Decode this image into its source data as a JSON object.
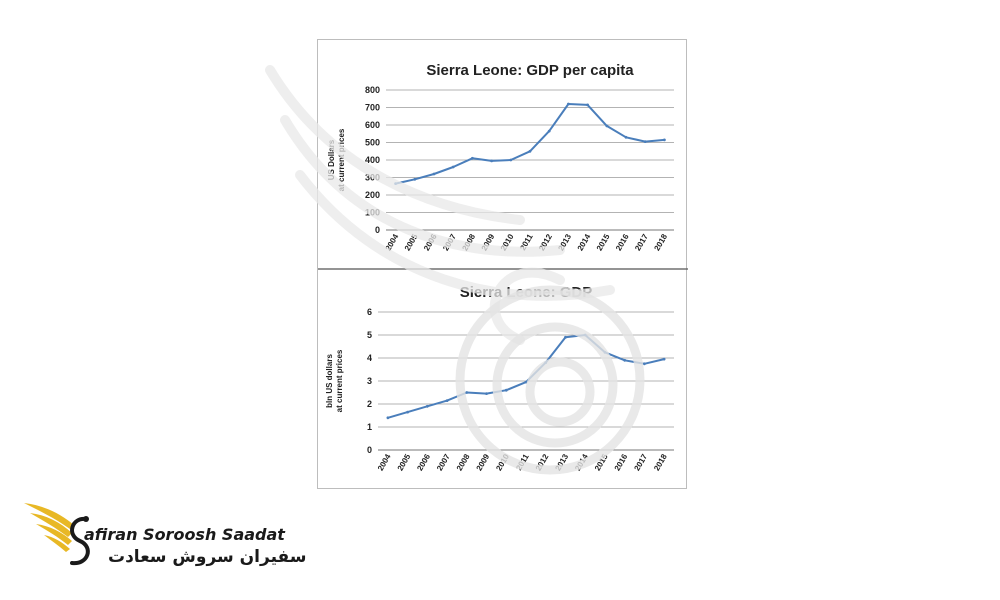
{
  "chart_data": [
    {
      "type": "line",
      "title": "Sierra Leone: GDP per capita",
      "ylabel": [
        "US Dollars",
        "at current prices"
      ],
      "xlabel": "",
      "categories": [
        "2004",
        "2005",
        "2006",
        "2007",
        "2008",
        "2009",
        "2010",
        "2011",
        "2012",
        "2013",
        "2014",
        "2015",
        "2016",
        "2017",
        "2018"
      ],
      "series": [
        {
          "values": [
            265,
            290,
            320,
            360,
            410,
            395,
            400,
            450,
            565,
            720,
            715,
            595,
            530,
            505,
            515
          ]
        }
      ],
      "ylim": [
        0,
        800
      ],
      "yticks": [
        0,
        100,
        200,
        300,
        400,
        500,
        600,
        700,
        800
      ],
      "grid": true,
      "legend": "none"
    },
    {
      "type": "line",
      "title": "Sierra Leone: GDP",
      "ylabel": [
        "bln US dollars",
        "at current prices"
      ],
      "xlabel": "",
      "categories": [
        "2004",
        "2005",
        "2006",
        "2007",
        "2008",
        "2009",
        "2010",
        "2011",
        "2012",
        "2013",
        "2014",
        "2015",
        "2016",
        "2017",
        "2018"
      ],
      "series": [
        {
          "values": [
            1.4,
            1.65,
            1.9,
            2.15,
            2.5,
            2.45,
            2.6,
            2.95,
            3.8,
            4.9,
            5.0,
            4.25,
            3.9,
            3.75,
            3.95
          ]
        }
      ],
      "ylim": [
        0,
        6
      ],
      "yticks": [
        0,
        1,
        2,
        3,
        4,
        5,
        6
      ],
      "grid": true,
      "legend": "none"
    }
  ],
  "colors": {
    "series": "#4a7ebb",
    "grid": "#9a9a9a",
    "logo_gold": "#e8b825",
    "logo_dark": "#1a1a1a"
  },
  "logo": {
    "icon": "winged-s-logo-icon",
    "text_en": "afiran Soroosh Saadat",
    "text_fa": "سفیران سروش سعادت"
  }
}
